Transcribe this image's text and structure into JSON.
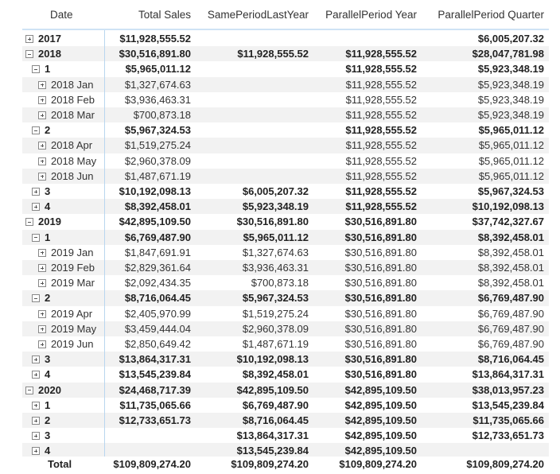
{
  "headers": [
    "Date",
    "Total Sales",
    "SamePeriodLastYear",
    "ParallelPeriod Year",
    "ParallelPeriod Quarter"
  ],
  "rows": [
    {
      "label": "2017",
      "level": 0,
      "icon": "plus",
      "bold": true,
      "values": [
        "$11,928,555.52",
        "",
        "",
        "$6,005,207.32"
      ]
    },
    {
      "label": "2018",
      "level": 0,
      "icon": "minus",
      "bold": true,
      "values": [
        "$30,516,891.80",
        "$11,928,555.52",
        "$11,928,555.52",
        "$28,047,781.98"
      ]
    },
    {
      "label": "1",
      "level": 1,
      "icon": "minus",
      "bold": true,
      "values": [
        "$5,965,011.12",
        "",
        "$11,928,555.52",
        "$5,923,348.19"
      ]
    },
    {
      "label": "2018 Jan",
      "level": 2,
      "icon": "plus",
      "bold": false,
      "values": [
        "$1,327,674.63",
        "",
        "$11,928,555.52",
        "$5,923,348.19"
      ]
    },
    {
      "label": "2018 Feb",
      "level": 2,
      "icon": "plus",
      "bold": false,
      "values": [
        "$3,936,463.31",
        "",
        "$11,928,555.52",
        "$5,923,348.19"
      ]
    },
    {
      "label": "2018 Mar",
      "level": 2,
      "icon": "plus",
      "bold": false,
      "values": [
        "$700,873.18",
        "",
        "$11,928,555.52",
        "$5,923,348.19"
      ]
    },
    {
      "label": "2",
      "level": 1,
      "icon": "minus",
      "bold": true,
      "values": [
        "$5,967,324.53",
        "",
        "$11,928,555.52",
        "$5,965,011.12"
      ]
    },
    {
      "label": "2018 Apr",
      "level": 2,
      "icon": "plus",
      "bold": false,
      "values": [
        "$1,519,275.24",
        "",
        "$11,928,555.52",
        "$5,965,011.12"
      ]
    },
    {
      "label": "2018 May",
      "level": 2,
      "icon": "plus",
      "bold": false,
      "values": [
        "$2,960,378.09",
        "",
        "$11,928,555.52",
        "$5,965,011.12"
      ]
    },
    {
      "label": "2018 Jun",
      "level": 2,
      "icon": "plus",
      "bold": false,
      "values": [
        "$1,487,671.19",
        "",
        "$11,928,555.52",
        "$5,965,011.12"
      ]
    },
    {
      "label": "3",
      "level": 1,
      "icon": "plus",
      "bold": true,
      "values": [
        "$10,192,098.13",
        "$6,005,207.32",
        "$11,928,555.52",
        "$5,967,324.53"
      ]
    },
    {
      "label": "4",
      "level": 1,
      "icon": "plus",
      "bold": true,
      "values": [
        "$8,392,458.01",
        "$5,923,348.19",
        "$11,928,555.52",
        "$10,192,098.13"
      ]
    },
    {
      "label": "2019",
      "level": 0,
      "icon": "minus",
      "bold": true,
      "values": [
        "$42,895,109.50",
        "$30,516,891.80",
        "$30,516,891.80",
        "$37,742,327.67"
      ]
    },
    {
      "label": "1",
      "level": 1,
      "icon": "minus",
      "bold": true,
      "values": [
        "$6,769,487.90",
        "$5,965,011.12",
        "$30,516,891.80",
        "$8,392,458.01"
      ]
    },
    {
      "label": "2019 Jan",
      "level": 2,
      "icon": "plus",
      "bold": false,
      "values": [
        "$1,847,691.91",
        "$1,327,674.63",
        "$30,516,891.80",
        "$8,392,458.01"
      ]
    },
    {
      "label": "2019 Feb",
      "level": 2,
      "icon": "plus",
      "bold": false,
      "values": [
        "$2,829,361.64",
        "$3,936,463.31",
        "$30,516,891.80",
        "$8,392,458.01"
      ]
    },
    {
      "label": "2019 Mar",
      "level": 2,
      "icon": "plus",
      "bold": false,
      "values": [
        "$2,092,434.35",
        "$700,873.18",
        "$30,516,891.80",
        "$8,392,458.01"
      ]
    },
    {
      "label": "2",
      "level": 1,
      "icon": "minus",
      "bold": true,
      "values": [
        "$8,716,064.45",
        "$5,967,324.53",
        "$30,516,891.80",
        "$6,769,487.90"
      ]
    },
    {
      "label": "2019 Apr",
      "level": 2,
      "icon": "plus",
      "bold": false,
      "values": [
        "$2,405,970.99",
        "$1,519,275.24",
        "$30,516,891.80",
        "$6,769,487.90"
      ]
    },
    {
      "label": "2019 May",
      "level": 2,
      "icon": "plus",
      "bold": false,
      "values": [
        "$3,459,444.04",
        "$2,960,378.09",
        "$30,516,891.80",
        "$6,769,487.90"
      ]
    },
    {
      "label": "2019 Jun",
      "level": 2,
      "icon": "plus",
      "bold": false,
      "values": [
        "$2,850,649.42",
        "$1,487,671.19",
        "$30,516,891.80",
        "$6,769,487.90"
      ]
    },
    {
      "label": "3",
      "level": 1,
      "icon": "plus",
      "bold": true,
      "values": [
        "$13,864,317.31",
        "$10,192,098.13",
        "$30,516,891.80",
        "$8,716,064.45"
      ]
    },
    {
      "label": "4",
      "level": 1,
      "icon": "plus",
      "bold": true,
      "values": [
        "$13,545,239.84",
        "$8,392,458.01",
        "$30,516,891.80",
        "$13,864,317.31"
      ]
    },
    {
      "label": "2020",
      "level": 0,
      "icon": "minus",
      "bold": true,
      "values": [
        "$24,468,717.39",
        "$42,895,109.50",
        "$42,895,109.50",
        "$38,013,957.23"
      ]
    },
    {
      "label": "1",
      "level": 1,
      "icon": "plus",
      "bold": true,
      "values": [
        "$11,735,065.66",
        "$6,769,487.90",
        "$42,895,109.50",
        "$13,545,239.84"
      ]
    },
    {
      "label": "2",
      "level": 1,
      "icon": "plus",
      "bold": true,
      "values": [
        "$12,733,651.73",
        "$8,716,064.45",
        "$42,895,109.50",
        "$11,735,065.66"
      ]
    },
    {
      "label": "3",
      "level": 1,
      "icon": "plus",
      "bold": true,
      "values": [
        "",
        "$13,864,317.31",
        "$42,895,109.50",
        "$12,733,651.73"
      ]
    },
    {
      "label": "4",
      "level": 1,
      "icon": "plus",
      "bold": true,
      "values": [
        "",
        "$13,545,239.84",
        "$42,895,109.50",
        ""
      ]
    }
  ],
  "total": {
    "label": "Total",
    "values": [
      "$109,809,274.20",
      "$109,809,274.20",
      "$109,809,274.20",
      "$109,809,274.20"
    ]
  }
}
